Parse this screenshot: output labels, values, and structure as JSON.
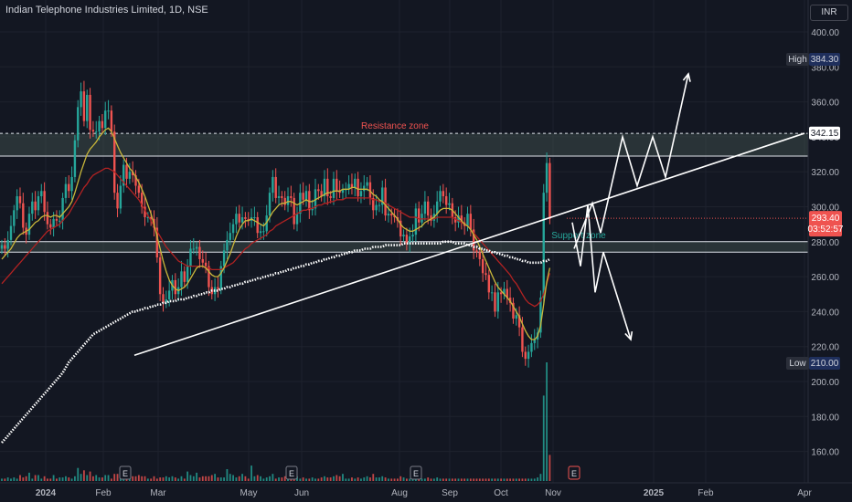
{
  "header": {
    "title": "Indian Telephone Industries Limited, 1D, NSE",
    "currency": "INR"
  },
  "chart_data": {
    "type": "candlestick",
    "title": "Indian Telephone Industries Limited, 1D, NSE",
    "ylim": [
      150,
      410
    ],
    "y_ticks": [
      400,
      380,
      360,
      340,
      320,
      300,
      280,
      260,
      240,
      220,
      200,
      180,
      160
    ],
    "x_ticks": [
      "2024",
      "Feb",
      "Mar",
      "May",
      "Jun",
      "Aug",
      "Sep",
      "Oct",
      "Nov",
      "2025",
      "Feb",
      "Apr"
    ],
    "grid": true,
    "price_close": [
      278,
      276,
      281,
      289,
      298,
      306,
      302,
      288,
      284,
      296,
      303,
      298,
      306,
      309,
      297,
      290,
      288,
      293,
      292,
      292,
      305,
      313,
      309,
      317,
      338,
      357,
      366,
      349,
      364,
      344,
      343,
      343,
      349,
      345,
      355,
      355,
      343,
      308,
      299,
      312,
      324,
      316,
      320,
      318,
      312,
      308,
      300,
      294,
      294,
      293,
      288,
      271,
      250,
      245,
      247,
      252,
      258,
      250,
      254,
      263,
      257,
      266,
      276,
      276,
      277,
      270,
      268,
      266,
      254,
      250,
      254,
      253,
      266,
      275,
      281,
      285,
      290,
      296,
      291,
      294,
      293,
      292,
      294,
      294,
      285,
      286,
      286,
      295,
      308,
      317,
      305,
      306,
      305,
      301,
      306,
      305,
      290,
      296,
      308,
      304,
      309,
      298,
      299,
      310,
      309,
      306,
      316,
      306,
      305,
      316,
      309,
      308,
      310,
      310,
      313,
      311,
      316,
      306,
      309,
      312,
      314,
      305,
      298,
      301,
      301,
      311,
      295,
      296,
      295,
      294,
      292,
      283,
      284,
      279,
      283,
      284,
      299,
      291,
      296,
      303,
      295,
      292,
      296,
      303,
      309,
      306,
      301,
      302,
      294,
      291,
      295,
      291,
      289,
      296,
      287,
      275,
      274,
      270,
      262,
      261,
      251,
      251,
      240,
      251,
      250,
      253,
      248,
      245,
      236,
      238,
      231,
      217,
      213,
      217,
      222,
      224,
      228,
      248,
      308,
      325,
      293
    ],
    "sma_short": [
      270,
      272,
      274,
      276,
      279,
      282,
      284,
      285,
      286,
      287,
      289,
      291,
      292,
      294,
      295,
      295,
      294,
      295,
      295,
      294,
      296,
      298,
      300,
      303,
      308,
      314,
      320,
      325,
      330,
      333,
      335,
      337,
      340,
      342,
      344,
      345,
      343,
      339,
      335,
      331,
      328,
      325,
      322,
      320,
      317,
      314,
      310,
      306,
      301,
      296,
      290,
      283,
      276,
      269,
      263,
      258,
      255,
      253,
      252,
      253,
      254,
      256,
      259,
      262,
      265,
      266,
      266,
      265,
      263,
      261,
      260,
      260,
      262,
      265,
      269,
      273,
      278,
      283,
      287,
      290,
      292,
      292,
      293,
      292,
      291,
      290,
      289,
      291,
      294,
      297,
      299,
      301,
      302,
      302,
      303,
      303,
      302,
      301,
      302,
      303,
      304,
      303,
      303,
      304,
      305,
      306,
      307,
      308,
      308,
      309,
      309,
      309,
      310,
      310,
      310,
      311,
      311,
      310,
      310,
      310,
      310,
      309,
      307,
      306,
      304,
      303,
      301,
      299,
      297,
      295,
      293,
      290,
      288,
      287,
      286,
      286,
      287,
      288,
      289,
      291,
      292,
      293,
      294,
      296,
      298,
      299,
      299,
      299,
      298,
      296,
      294,
      292,
      290,
      289,
      287,
      284,
      281,
      277,
      273,
      269,
      265,
      261,
      257,
      254,
      252,
      250,
      248,
      246,
      243,
      240,
      237,
      233,
      229,
      226,
      224,
      224,
      226,
      232,
      244,
      257,
      265
    ],
    "sma_mid": [
      256,
      258,
      260,
      262,
      264,
      266,
      268,
      270,
      272,
      274,
      276,
      278,
      280,
      282,
      284,
      286,
      287,
      288,
      289,
      290,
      292,
      294,
      296,
      299,
      302,
      305,
      308,
      311,
      313,
      316,
      318,
      319,
      320,
      321,
      322,
      322,
      321,
      320,
      318,
      316,
      314,
      312,
      310,
      308,
      306,
      304,
      301,
      298,
      295,
      292,
      289,
      286,
      283,
      280,
      277,
      275,
      273,
      271,
      269,
      268,
      267,
      266,
      266,
      266,
      266,
      266,
      266,
      265,
      265,
      264,
      264,
      264,
      264,
      265,
      266,
      267,
      268,
      270,
      272,
      274,
      276,
      277,
      279,
      280,
      281,
      282,
      283,
      284,
      286,
      287,
      289,
      290,
      291,
      292,
      293,
      294,
      295,
      296,
      297,
      298,
      298,
      299,
      299,
      300,
      301,
      301,
      302,
      302,
      303,
      303,
      304,
      304,
      304,
      305,
      305,
      305,
      305,
      305,
      305,
      305,
      305,
      305,
      304,
      304,
      303,
      303,
      302,
      301,
      300,
      299,
      298,
      297,
      296,
      295,
      294,
      294,
      294,
      293,
      293,
      293,
      293,
      293,
      293,
      294,
      294,
      294,
      294,
      294,
      294,
      293,
      292,
      291,
      290,
      289,
      287,
      285,
      283,
      281,
      279,
      277,
      275,
      273,
      271,
      269,
      267,
      265,
      263,
      261,
      258,
      256,
      253,
      250,
      247,
      245,
      244,
      243,
      244,
      246,
      250,
      256,
      262
    ],
    "sma_long": [
      165,
      167,
      169,
      171,
      173,
      175,
      177,
      179,
      181,
      183,
      185,
      187,
      189,
      191,
      193,
      195,
      197,
      199,
      201,
      203,
      205,
      208,
      211,
      213,
      215,
      217,
      219,
      221,
      223,
      225,
      227,
      228,
      229,
      230,
      231,
      232,
      233,
      234,
      235,
      236,
      237,
      238,
      239,
      240,
      240,
      241,
      241,
      242,
      242,
      243,
      243,
      244,
      244,
      245,
      245,
      246,
      246,
      246,
      247,
      247,
      247,
      248,
      248,
      249,
      249,
      250,
      250,
      251,
      251,
      252,
      252,
      252,
      253,
      253,
      254,
      254,
      255,
      255,
      256,
      256,
      257,
      257,
      258,
      258,
      259,
      259,
      260,
      260,
      261,
      261,
      262,
      262,
      263,
      263,
      264,
      264,
      265,
      265,
      266,
      266,
      267,
      267,
      268,
      268,
      269,
      269,
      270,
      270,
      271,
      271,
      272,
      272,
      273,
      273,
      274,
      274,
      275,
      275,
      275,
      276,
      276,
      276,
      277,
      277,
      277,
      277,
      278,
      278,
      278,
      278,
      278,
      278,
      279,
      279,
      279,
      279,
      279,
      279,
      279,
      279,
      279,
      279,
      279,
      279,
      279,
      280,
      280,
      280,
      280,
      279,
      279,
      279,
      279,
      278,
      278,
      277,
      277,
      276,
      276,
      275,
      275,
      274,
      274,
      273,
      273,
      272,
      272,
      271,
      271,
      270,
      270,
      269,
      269,
      268,
      268,
      268,
      268,
      268,
      269,
      269,
      270
    ],
    "volume_relative": [
      0.02,
      0.02,
      0.03,
      0.02,
      0.03,
      0.02,
      0.05,
      0.03,
      0.04,
      0.07,
      0.02,
      0.05,
      0.05,
      0.02,
      0.04,
      0.02,
      0.02,
      0.05,
      0.02,
      0.03,
      0.03,
      0.04,
      0.03,
      0.02,
      0.04,
      0.11,
      0.06,
      0.09,
      0.05,
      0.08,
      0.04,
      0.05,
      0.03,
      0.03,
      0.05,
      0.05,
      0.02,
      0.06,
      0.06,
      0.05,
      0.04,
      0.02,
      0.03,
      0.04,
      0.04,
      0.05,
      0.04,
      0.04,
      0.02,
      0.02,
      0.04,
      0.02,
      0.03,
      0.03,
      0.04,
      0.03,
      0.04,
      0.03,
      0.02,
      0.04,
      0.02,
      0.08,
      0.05,
      0.04,
      0.07,
      0.03,
      0.04,
      0.04,
      0.04,
      0.05,
      0.06,
      0.03,
      0.03,
      0.03,
      0.1,
      0.06,
      0.05,
      0.03,
      0.04,
      0.06,
      0.04,
      0.02,
      0.13,
      0.04,
      0.05,
      0.04,
      0.02,
      0.03,
      0.04,
      0.06,
      0.02,
      0.03,
      0.03,
      0.04,
      0.05,
      0.04,
      0.03,
      0.04,
      0.02,
      0.03,
      0.02,
      0.02,
      0.03,
      0.02,
      0.02,
      0.03,
      0.04,
      0.03,
      0.03,
      0.04,
      0.05,
      0.04,
      0.06,
      0.02,
      0.02,
      0.03,
      0.02,
      0.03,
      0.02,
      0.03,
      0.04,
      0.03,
      0.06,
      0.03,
      0.03,
      0.04,
      0.03,
      0.02,
      0.02,
      0.02,
      0.02,
      0.04,
      0.03,
      0.02,
      0.02,
      0.02,
      0.04,
      0.03,
      0.02,
      0.02,
      0.03,
      0.02,
      0.02,
      0.03,
      0.02,
      0.02,
      0.02,
      0.02,
      0.02,
      0.02,
      0.02,
      0.02,
      0.02,
      0.02,
      0.02,
      0.02,
      0.02,
      0.02,
      0.02,
      0.02,
      0.02,
      0.02,
      0.02,
      0.02,
      0.02,
      0.02,
      0.02,
      0.02,
      0.02,
      0.02,
      0.02,
      0.02,
      0.02,
      0.02,
      0.02,
      0.02,
      0.03,
      0.06,
      0.72,
      1.0,
      0.22
    ],
    "resistance_zone": {
      "label": "Resistance zone",
      "high": 342,
      "low": 329
    },
    "support_zone": {
      "label": "Support zone",
      "high": 280,
      "low": 274
    },
    "trendline": {
      "from": {
        "date": "Mar 2024",
        "price": 215
      },
      "to": {
        "date": "Apr 2025",
        "price": 342
      }
    },
    "projection_up": [
      {
        "date": "Nov 2024",
        "price": 276
      },
      {
        "date": "Nov 2024",
        "price": 302
      },
      {
        "date": "Dec 2024",
        "price": 285
      },
      {
        "date": "Dec 2024",
        "price": 340
      },
      {
        "date": "Dec 2024",
        "price": 312
      },
      {
        "date": "Jan 2025",
        "price": 340
      },
      {
        "date": "Jan 2025",
        "price": 317
      },
      {
        "date": "Jan 2025",
        "price": 376
      }
    ],
    "projection_down": [
      {
        "date": "Nov 2024",
        "price": 291
      },
      {
        "date": "Nov 2024",
        "price": 266
      },
      {
        "date": "Nov 2024",
        "price": 301
      },
      {
        "date": "Nov 2024",
        "price": 251
      },
      {
        "date": "Dec 2024",
        "price": 274
      },
      {
        "date": "Dec 2024",
        "price": 224
      }
    ],
    "earnings_markers": [
      {
        "label": "E",
        "date": "Feb 2024"
      },
      {
        "label": "E",
        "date": "May 2024"
      },
      {
        "label": "E",
        "date": "Aug 2024"
      },
      {
        "label": "E",
        "date": "Nov 2024"
      }
    ],
    "labels": {
      "high": {
        "label": "High",
        "value": "384.30"
      },
      "low": {
        "label": "Low",
        "value": "210.00"
      },
      "resistance_price": "342.15",
      "current_price": "293.40",
      "countdown": "03:52:57"
    },
    "colors": {
      "up": "#26a69a",
      "down": "#ef5350",
      "sma_short": "#c9b73a",
      "sma_mid": "#b22222",
      "sma_long": "#ffffff",
      "zone_fill": "#3d4a48"
    }
  }
}
